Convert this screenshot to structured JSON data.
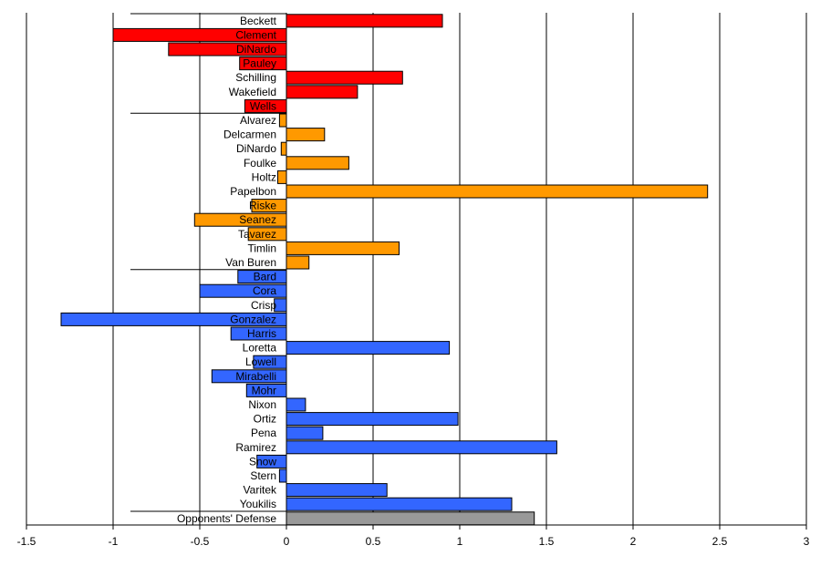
{
  "chart_data": {
    "type": "bar",
    "orientation": "horizontal",
    "title": "",
    "xlabel": "",
    "ylabel": "",
    "xlim": [
      -1.5,
      3
    ],
    "xticks": [
      "-1.5",
      "-1",
      "-0.5",
      "0",
      "0.5",
      "1",
      "1.5",
      "2",
      "2.5",
      "3"
    ],
    "grid": "vertical",
    "legend": "none",
    "group_colors": {
      "starters": "#ff0000",
      "relievers": "#ff9900",
      "hitters": "#3366ff",
      "defense": "#999999"
    },
    "categories": [
      "Beckett",
      "Clement",
      "DiNardo",
      "Pauley",
      "Schilling",
      "Wakefield",
      "Wells",
      "Alvarez",
      "Delcarmen",
      "DiNardo",
      "Foulke",
      "Holtz",
      "Papelbon",
      "Riske",
      "Seanez",
      "Tavarez",
      "Timlin",
      "Van Buren",
      "Bard",
      "Cora",
      "Crisp",
      "Gonzalez",
      "Harris",
      "Loretta",
      "Lowell",
      "Mirabelli",
      "Mohr",
      "Nixon",
      "Ortiz",
      "Pena",
      "Ramirez",
      "Snow",
      "Stern",
      "Varitek",
      "Youkilis",
      "Opponents' Defense"
    ],
    "values": [
      0.9,
      -1.0,
      -0.68,
      -0.27,
      0.67,
      0.41,
      -0.24,
      -0.04,
      0.22,
      -0.03,
      0.36,
      -0.05,
      2.43,
      -0.2,
      -0.53,
      -0.22,
      0.65,
      0.13,
      -0.28,
      -0.5,
      -0.07,
      -1.3,
      -0.32,
      0.94,
      -0.19,
      -0.43,
      -0.23,
      0.11,
      0.99,
      0.21,
      1.56,
      -0.17,
      -0.04,
      0.58,
      1.3,
      1.43
    ],
    "groups": [
      "starters",
      "starters",
      "starters",
      "starters",
      "starters",
      "starters",
      "starters",
      "relievers",
      "relievers",
      "relievers",
      "relievers",
      "relievers",
      "relievers",
      "relievers",
      "relievers",
      "relievers",
      "relievers",
      "relievers",
      "hitters",
      "hitters",
      "hitters",
      "hitters",
      "hitters",
      "hitters",
      "hitters",
      "hitters",
      "hitters",
      "hitters",
      "hitters",
      "hitters",
      "hitters",
      "hitters",
      "hitters",
      "hitters",
      "hitters",
      "defense"
    ]
  }
}
